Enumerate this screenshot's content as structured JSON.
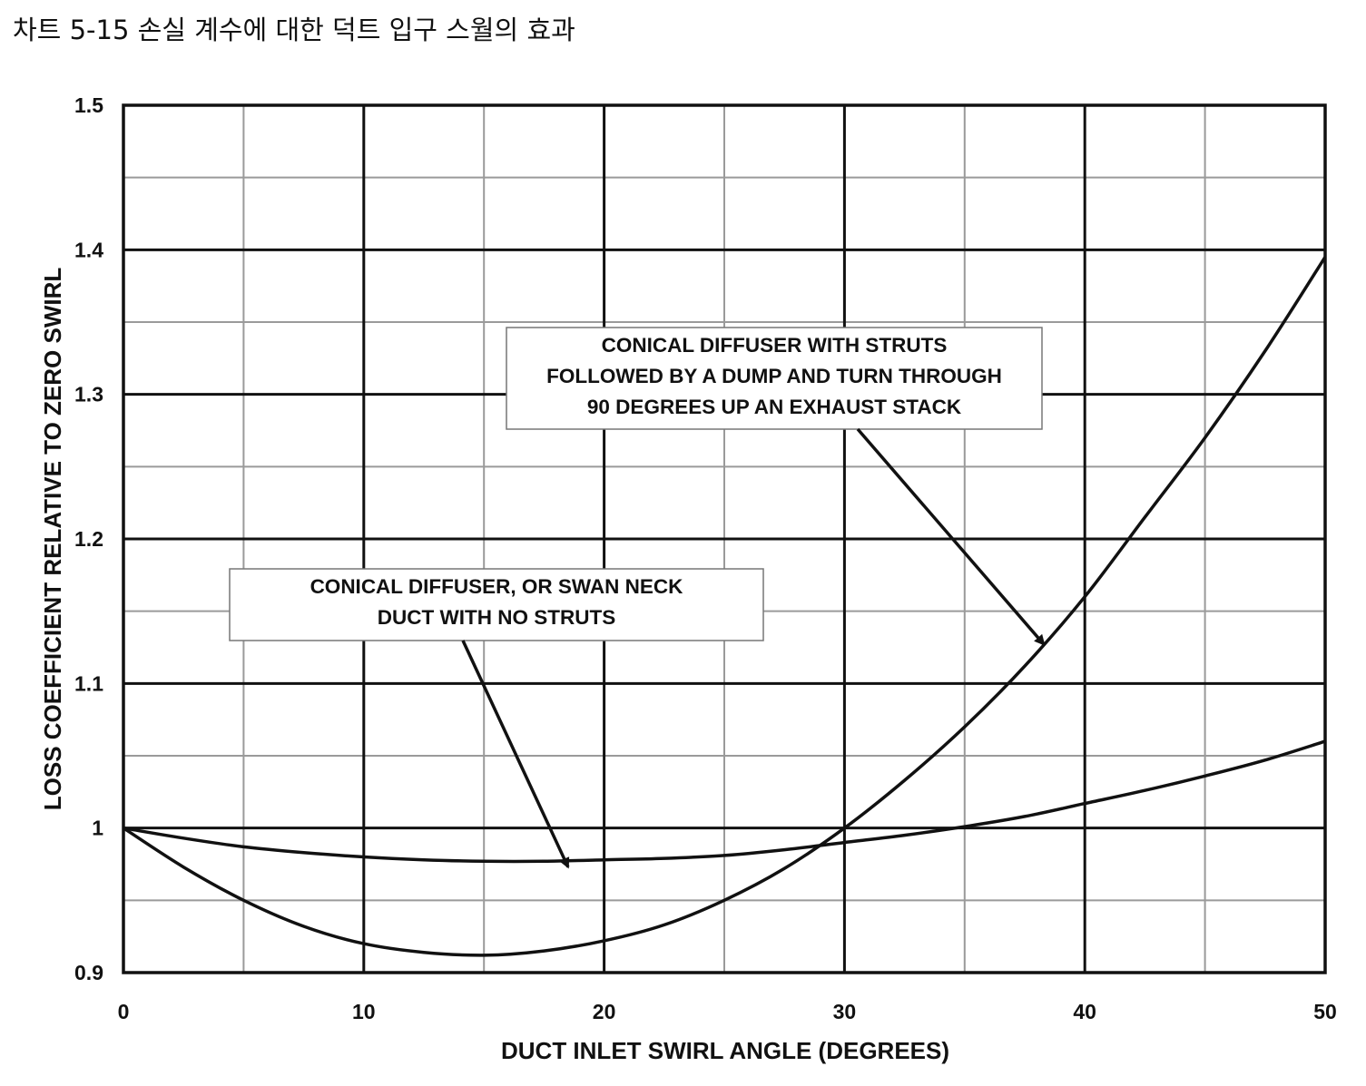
{
  "page": {
    "title": "차트 5-15 손실 계수에 대한 덕트 입구 스월의 효과"
  },
  "chart_data": {
    "type": "line",
    "xlabel": "DUCT INLET SWIRL ANGLE (DEGREES)",
    "ylabel": "LOSS COEFFICIENT RELATIVE TO ZERO SWIRL",
    "xlim": [
      0,
      50
    ],
    "ylim": [
      0.9,
      1.5
    ],
    "x_ticks": [
      "0",
      "10",
      "20",
      "30",
      "40",
      "50"
    ],
    "y_ticks": [
      "0.9",
      "1",
      "1.1",
      "1.2",
      "1.3",
      "1.4",
      "1.5"
    ],
    "x_minor_step": 5,
    "y_minor_step": 0.05,
    "grid": true,
    "series": [
      {
        "x": [
          0,
          2.5,
          5,
          7.5,
          10,
          12.5,
          15,
          17.5,
          20,
          22.5,
          25,
          27.5,
          30,
          32.5,
          35,
          37.5,
          40,
          42.5,
          45,
          47.5,
          50
        ],
        "y": [
          1.0,
          0.993,
          0.987,
          0.983,
          0.98,
          0.978,
          0.977,
          0.977,
          0.978,
          0.979,
          0.981,
          0.985,
          0.99,
          0.995,
          1.001,
          1.008,
          1.017,
          1.026,
          1.036,
          1.047,
          1.06
        ]
      },
      {
        "x": [
          0,
          2.5,
          5,
          7.5,
          10,
          12.5,
          15,
          17.5,
          20,
          22.5,
          25,
          27.5,
          30,
          32.5,
          35,
          37.5,
          40,
          42.5,
          45,
          47.5,
          50
        ],
        "y": [
          1.0,
          0.973,
          0.95,
          0.932,
          0.92,
          0.914,
          0.912,
          0.915,
          0.922,
          0.933,
          0.95,
          0.972,
          1.0,
          1.033,
          1.07,
          1.112,
          1.16,
          1.215,
          1.27,
          1.33,
          1.395
        ]
      }
    ],
    "annotations": [
      {
        "lines": [
          "CONICAL DIFFUSER WITH STRUTS",
          "FOLLOWED BY A DUMP AND TURN THROUGH",
          "90 DEGREES UP AN EXHAUST STACK"
        ],
        "target": [
          38.3,
          1.127
        ]
      },
      {
        "lines": [
          "CONICAL DIFFUSER, OR SWAN NECK",
          "DUCT WITH NO STRUTS"
        ],
        "target": [
          18.5,
          0.973
        ]
      }
    ],
    "colors": {
      "line": "#111111",
      "major_grid": "#111111",
      "minor_grid": "#9a9a9a"
    }
  }
}
